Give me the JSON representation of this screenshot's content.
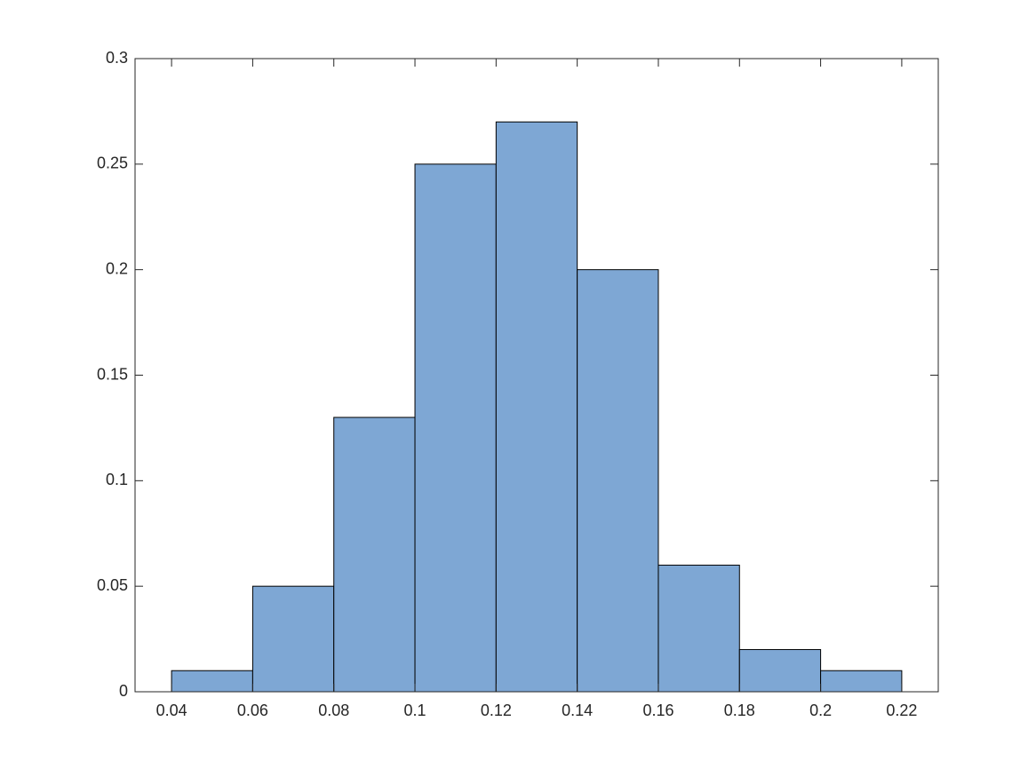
{
  "chart_data": {
    "type": "histogram",
    "bins": [
      0.04,
      0.06,
      0.08,
      0.1,
      0.12,
      0.14,
      0.16,
      0.18,
      0.2,
      0.22
    ],
    "values": [
      0.01,
      0.05,
      0.13,
      0.25,
      0.27,
      0.2,
      0.06,
      0.02,
      0.01
    ],
    "color": "#7ea7d4",
    "edgecolor": "#000000",
    "xlim": [
      0.031,
      0.229
    ],
    "xticks": [
      0.04,
      0.06,
      0.08,
      0.1,
      0.12,
      0.14,
      0.16,
      0.18,
      0.2,
      0.22
    ],
    "ylim": [
      0,
      0.3
    ],
    "yticks": [
      0,
      0.05,
      0.1,
      0.15,
      0.2,
      0.25,
      0.3
    ],
    "box": true
  }
}
